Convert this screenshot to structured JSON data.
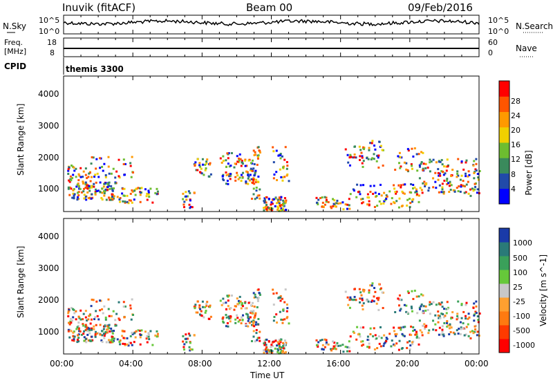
{
  "header": {
    "station": "Inuvik (fitACF)",
    "beam": "Beam 00",
    "date": "09/Feb/2016"
  },
  "noise_panel": {
    "left_label": "N.Sky",
    "right_label": "N.Search",
    "left_ticks": [
      "10^5",
      "10^0"
    ],
    "right_ticks": [
      "10^5",
      "10^0"
    ]
  },
  "freq_panel": {
    "left_label": "Freq.",
    "left_unit": "[MHz]",
    "right_label": "Nave",
    "left_ticks": [
      "18",
      "8"
    ],
    "right_ticks": [
      "60",
      "0"
    ]
  },
  "cpid": {
    "label": "CPID",
    "value": "themis 3300"
  },
  "chart_data": [
    {
      "type": "heatmap",
      "name": "power",
      "ylabel": "Slant Range [km]",
      "y_ticks": [
        "1000",
        "2000",
        "3000",
        "4000"
      ],
      "colorbar_label": "Power [dB]",
      "colorbar_ticks": [
        "4",
        "8",
        "12",
        "16",
        "20",
        "24",
        "28"
      ],
      "colorbar_colors": [
        "#0000ff",
        "#214aa9",
        "#3a8a5c",
        "#6dbd30",
        "#f0d000",
        "#ff9900",
        "#ff5500",
        "#ff0000"
      ],
      "ylim": [
        200,
        4500
      ]
    },
    {
      "type": "heatmap",
      "name": "velocity",
      "ylabel": "Slant Range [km]",
      "y_ticks": [
        "1000",
        "2000",
        "3000",
        "4000"
      ],
      "colorbar_label": "Velocity [m s^-1]",
      "colorbar_ticks": [
        "1000",
        "500",
        "100",
        "25",
        "-25",
        "-100",
        "-500",
        "-1000"
      ],
      "colorbar_colors": [
        "#1a3aa8",
        "#2a7a78",
        "#3aa05a",
        "#66c83a",
        "#c8c8c8",
        "#ffa030",
        "#ff7a10",
        "#ff3a00",
        "#ff0000"
      ],
      "ylim": [
        200,
        4500
      ]
    }
  ],
  "time_axis": {
    "label": "Time UT",
    "ticks": [
      "00:00",
      "04:00",
      "08:00",
      "12:00",
      "16:00",
      "20:00",
      "00:00"
    ]
  }
}
